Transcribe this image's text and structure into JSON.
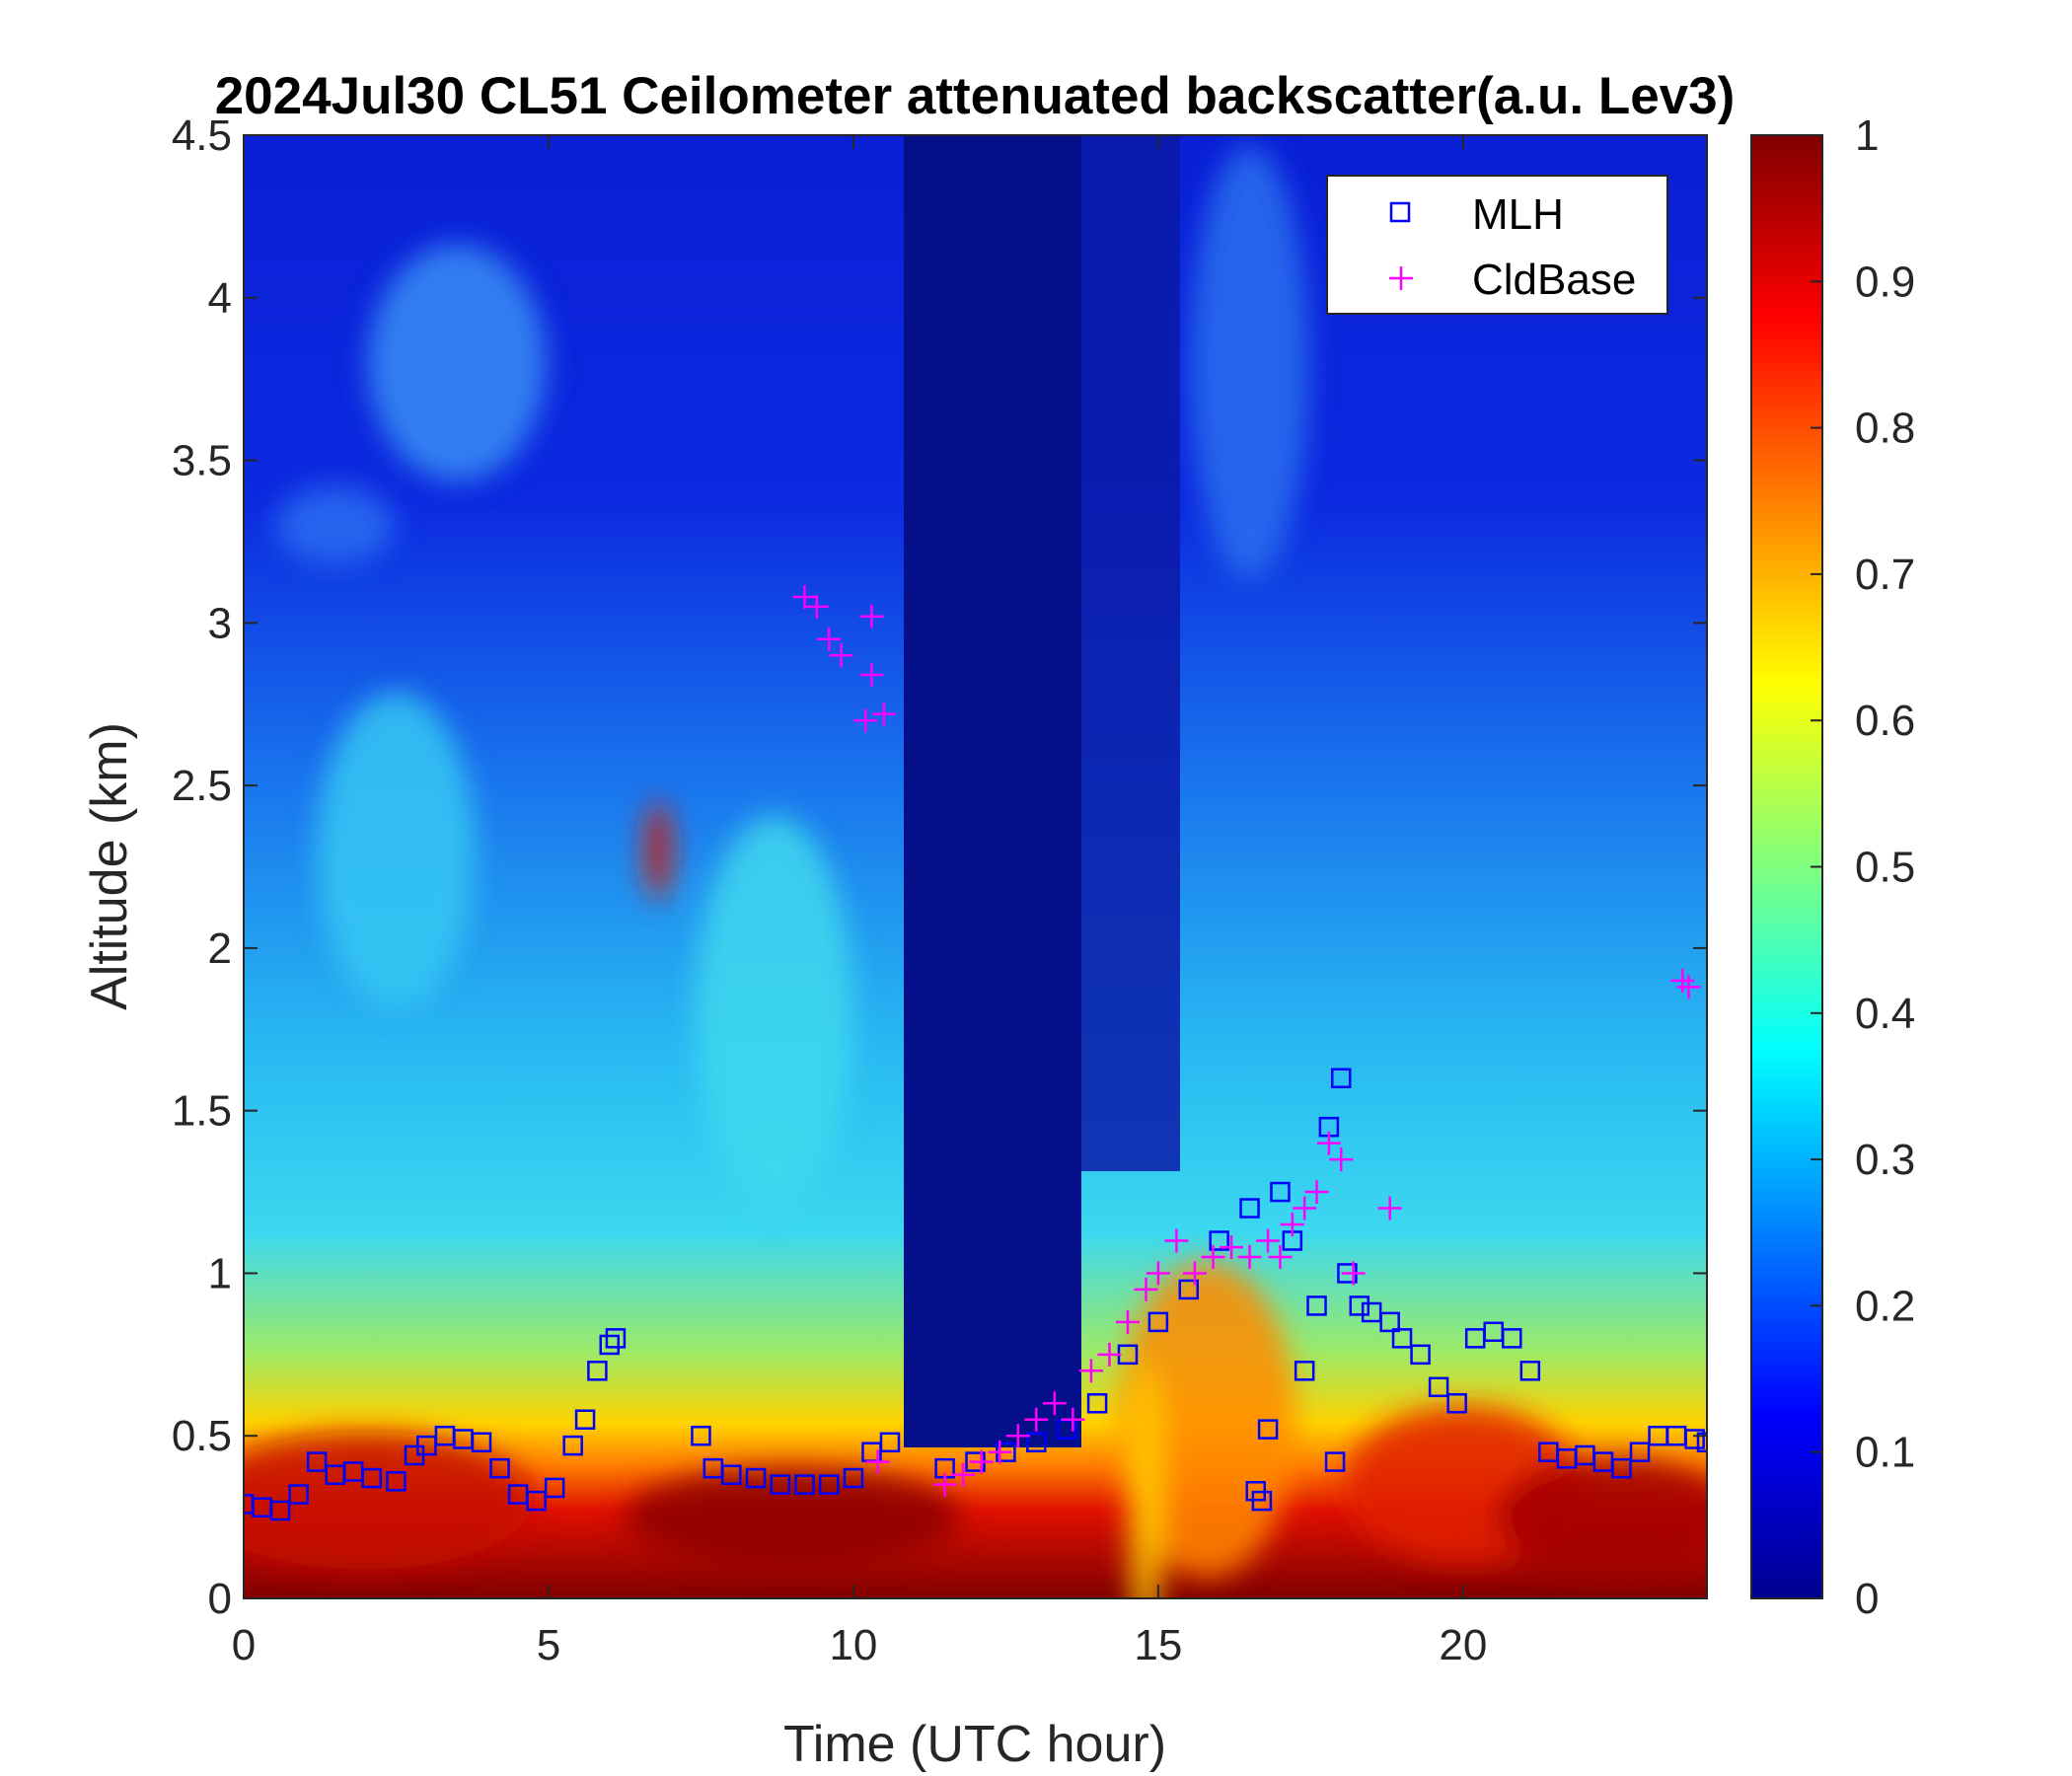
{
  "chart_data": {
    "type": "heatmap",
    "title": "2024Jul30 CL51 Ceilometer attenuated backscatter(a.u. Lev3)",
    "xlabel": "Time (UTC hour)",
    "ylabel": "Altitude (km)",
    "xlim": [
      0,
      24
    ],
    "ylim": [
      0,
      4.5
    ],
    "xticks": [
      0,
      5,
      10,
      15,
      20
    ],
    "xtick_labels": [
      "0",
      "5",
      "10",
      "15",
      "20"
    ],
    "yticks": [
      0,
      0.5,
      1,
      1.5,
      2,
      2.5,
      3,
      3.5,
      4,
      4.5
    ],
    "ytick_labels": [
      "0",
      "0.5",
      "1",
      "1.5",
      "2",
      "2.5",
      "3",
      "3.5",
      "4",
      "4.5"
    ],
    "colorbar": {
      "colormap": "jet",
      "range": [
        0,
        1
      ],
      "ticks": [
        0,
        0.1,
        0.2,
        0.3,
        0.4,
        0.5,
        0.6,
        0.7,
        0.8,
        0.9,
        1
      ],
      "tick_labels": [
        "0",
        "0.1",
        "0.2",
        "0.3",
        "0.4",
        "0.5",
        "0.6",
        "0.7",
        "0.8",
        "0.9",
        "1"
      ]
    },
    "legend": {
      "position": "top-right",
      "entries": [
        {
          "label": "MLH",
          "marker": "square",
          "color": "#0000ff"
        },
        {
          "label": "CldBase",
          "marker": "plus",
          "color": "#ff00ff"
        }
      ]
    },
    "series": [
      {
        "name": "MLH",
        "marker": "square",
        "color": "#0000ff",
        "x": [
          0.0,
          0.3,
          0.6,
          0.9,
          1.2,
          1.5,
          1.8,
          2.1,
          2.5,
          2.8,
          3.0,
          3.3,
          3.6,
          3.9,
          4.2,
          4.5,
          4.8,
          5.1,
          5.4,
          5.6,
          5.8,
          6.0,
          6.1,
          7.5,
          7.7,
          8.0,
          8.4,
          8.8,
          9.2,
          9.6,
          10.0,
          10.3,
          10.6,
          11.5,
          12.0,
          12.5,
          13.0,
          13.5,
          14.0,
          14.5,
          15.0,
          15.5,
          16.0,
          16.5,
          16.6,
          16.7,
          16.8,
          17.0,
          17.2,
          17.4,
          17.6,
          17.8,
          17.9,
          18.0,
          18.1,
          18.3,
          18.5,
          18.8,
          19.0,
          19.3,
          19.6,
          19.9,
          20.2,
          20.5,
          20.8,
          21.1,
          21.4,
          21.7,
          22.0,
          22.3,
          22.6,
          22.9,
          23.2,
          23.5,
          23.8,
          24.0
        ],
        "y": [
          0.29,
          0.28,
          0.27,
          0.32,
          0.42,
          0.38,
          0.39,
          0.37,
          0.36,
          0.44,
          0.47,
          0.5,
          0.49,
          0.48,
          0.4,
          0.32,
          0.3,
          0.34,
          0.47,
          0.55,
          0.7,
          0.78,
          0.8,
          0.5,
          0.4,
          0.38,
          0.37,
          0.35,
          0.35,
          0.35,
          0.37,
          0.45,
          0.48,
          0.4,
          0.42,
          0.45,
          0.48,
          0.52,
          0.6,
          0.75,
          0.85,
          0.95,
          1.1,
          1.2,
          0.33,
          0.3,
          0.52,
          1.25,
          1.1,
          0.7,
          0.9,
          1.45,
          0.42,
          1.6,
          1.0,
          0.9,
          0.88,
          0.85,
          0.8,
          0.75,
          0.65,
          0.6,
          0.8,
          0.82,
          0.8,
          0.7,
          0.45,
          0.43,
          0.44,
          0.42,
          0.4,
          0.45,
          0.5,
          0.5,
          0.49,
          0.48
        ]
      },
      {
        "name": "CldBase",
        "marker": "plus",
        "color": "#ff00ff",
        "x": [
          9.2,
          9.4,
          9.6,
          9.8,
          10.2,
          10.3,
          10.5,
          10.3,
          10.4,
          11.5,
          11.8,
          12.1,
          12.4,
          12.7,
          13.0,
          13.3,
          13.6,
          13.9,
          14.2,
          14.5,
          14.8,
          15.0,
          15.3,
          15.6,
          15.9,
          16.2,
          16.5,
          16.8,
          17.0,
          17.2,
          17.4,
          17.6,
          17.8,
          18.0,
          18.2,
          18.8,
          23.6,
          23.7
        ],
        "y": [
          3.08,
          3.05,
          2.95,
          2.9,
          2.7,
          2.84,
          2.72,
          3.02,
          0.42,
          0.35,
          0.38,
          0.42,
          0.45,
          0.5,
          0.55,
          0.6,
          0.55,
          0.7,
          0.75,
          0.85,
          0.95,
          1.0,
          1.1,
          1.0,
          1.05,
          1.08,
          1.05,
          1.1,
          1.05,
          1.15,
          1.2,
          1.25,
          1.4,
          1.35,
          1.0,
          1.2,
          1.9,
          1.88
        ]
      }
    ]
  }
}
